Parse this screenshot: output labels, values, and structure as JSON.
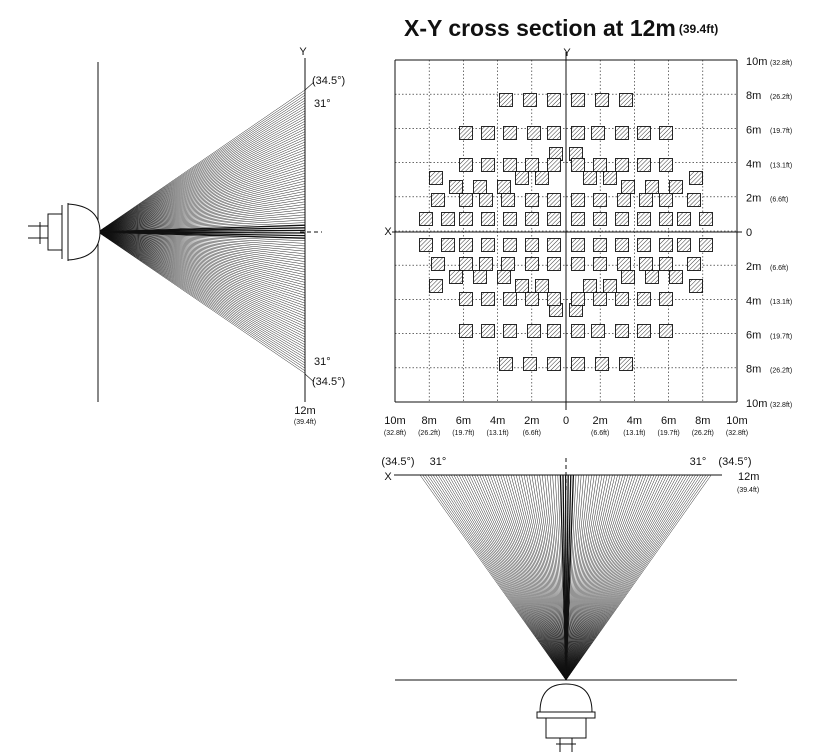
{
  "title": {
    "main": "X-Y cross section at 12m",
    "unit": "(39.4ft)"
  },
  "side_view": {
    "axis": "Y",
    "top_outer": "(34.5°)",
    "top_inner": "31°",
    "bottom_inner": "31°",
    "bottom_outer": "(34.5°)",
    "range": "12m",
    "range_ft": "(39.4ft)"
  },
  "cross_section": {
    "y_axis": "Y",
    "x_axis": "X",
    "y_labels": [
      {
        "m": "10m",
        "ft": "(32.8ft)"
      },
      {
        "m": "8m",
        "ft": "(26.2ft)"
      },
      {
        "m": "6m",
        "ft": "(19.7ft)"
      },
      {
        "m": "4m",
        "ft": "(13.1ft)"
      },
      {
        "m": "2m",
        "ft": "(6.6ft)"
      },
      {
        "m": "0"
      },
      {
        "m": "2m",
        "ft": "(6.6ft)"
      },
      {
        "m": "4m",
        "ft": "(13.1ft)"
      },
      {
        "m": "6m",
        "ft": "(19.7ft)"
      },
      {
        "m": "8m",
        "ft": "(26.2ft)"
      },
      {
        "m": "10m",
        "ft": "(32.8ft)"
      }
    ],
    "x_labels": [
      {
        "m": "10m",
        "ft": "(32.8ft)"
      },
      {
        "m": "8m",
        "ft": "(26.2ft)"
      },
      {
        "m": "6m",
        "ft": "(19.7ft)"
      },
      {
        "m": "4m",
        "ft": "(13.1ft)"
      },
      {
        "m": "2m",
        "ft": "(6.6ft)"
      },
      {
        "m": "0"
      },
      {
        "m": "2m",
        "ft": "(6.6ft)"
      },
      {
        "m": "4m",
        "ft": "(13.1ft)"
      },
      {
        "m": "6m",
        "ft": "(19.7ft)"
      },
      {
        "m": "8m",
        "ft": "(26.2ft)"
      },
      {
        "m": "10m",
        "ft": "(32.8ft)"
      }
    ]
  },
  "top_view": {
    "left_outer": "(34.5°)",
    "left_inner": "31°",
    "axis": "X",
    "right_inner": "31°",
    "right_outer": "(34.5°)",
    "range": "12m",
    "range_ft": "(39.4ft)"
  }
}
